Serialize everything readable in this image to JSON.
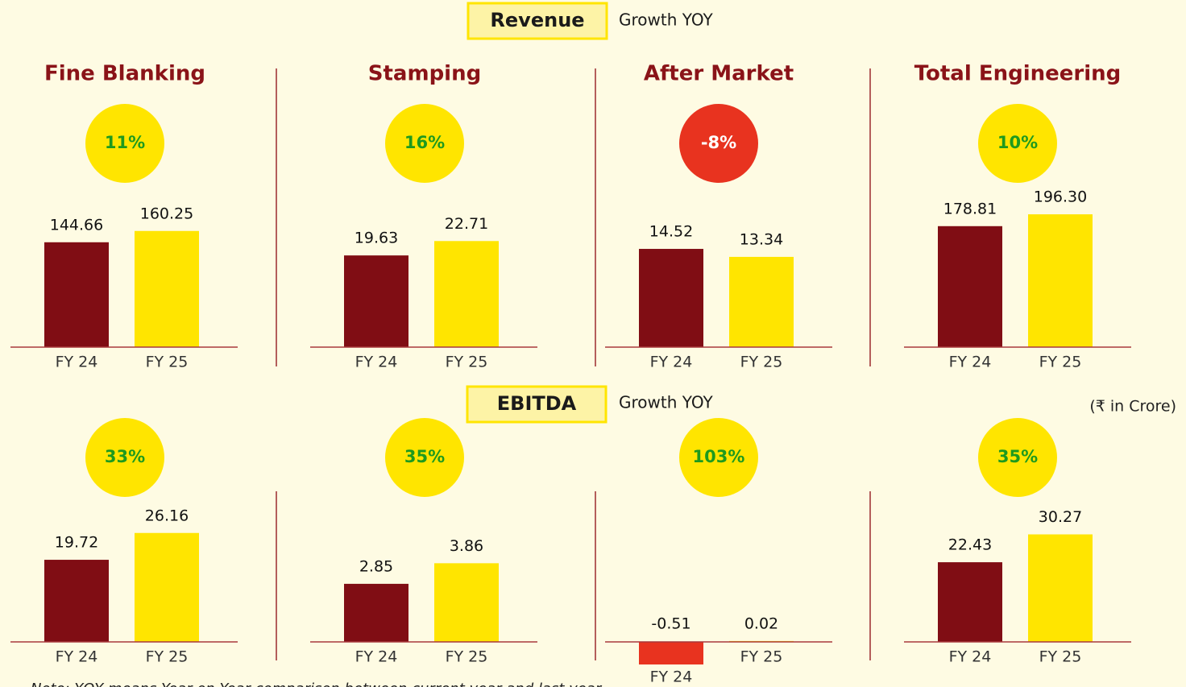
{
  "sections": [
    {
      "title": "Revenue",
      "growth_label": "Growth YOY"
    },
    {
      "title": "EBITDA",
      "growth_label": "Growth YOY"
    }
  ],
  "unit_note": "(₹ in Crore)",
  "note": "Note: YOY means Year on Year comparison between current year and last year",
  "chart_data": [
    {
      "type": "bar",
      "title": "Fine Blanking",
      "categories": [
        "FY 24",
        "FY 25"
      ],
      "values": [
        144.66,
        160.25
      ],
      "colors": [
        "#800d14",
        "#ffe500"
      ],
      "growth": {
        "value": 11,
        "label": "11%"
      }
    },
    {
      "type": "bar",
      "title": "Stamping",
      "categories": [
        "FY 24",
        "FY 25"
      ],
      "values": [
        19.63,
        22.71
      ],
      "colors": [
        "#800d14",
        "#ffe500"
      ],
      "growth": {
        "value": 16,
        "label": "16%"
      }
    },
    {
      "type": "bar",
      "title": "After Market",
      "categories": [
        "FY 24",
        "FY 25"
      ],
      "values": [
        14.52,
        13.34
      ],
      "colors": [
        "#800d14",
        "#ffe500"
      ],
      "growth": {
        "value": -8,
        "label": "-8%"
      }
    },
    {
      "type": "bar",
      "title": "Total Engineering",
      "categories": [
        "FY 24",
        "FY 25"
      ],
      "values": [
        178.81,
        196.3
      ],
      "value_labels": [
        "178.81",
        "196.30"
      ],
      "colors": [
        "#800d14",
        "#ffe500"
      ],
      "growth": {
        "value": 10,
        "label": "10%"
      }
    },
    {
      "type": "bar",
      "categories": [
        "FY 24",
        "FY 25"
      ],
      "values": [
        19.72,
        26.16
      ],
      "colors": [
        "#800d14",
        "#ffe500"
      ],
      "growth": {
        "value": 33,
        "label": "33%"
      }
    },
    {
      "type": "bar",
      "categories": [
        "FY 24",
        "FY 25"
      ],
      "values": [
        2.85,
        3.86
      ],
      "colors": [
        "#800d14",
        "#ffe500"
      ],
      "growth": {
        "value": 35,
        "label": "35%"
      }
    },
    {
      "type": "bar",
      "categories": [
        "FY 24",
        "FY 25"
      ],
      "values": [
        -0.51,
        0.02
      ],
      "colors": [
        "#800d14",
        "#ffe500"
      ],
      "negative_color": "#e8331f",
      "growth": {
        "value": 103,
        "label": "103%"
      }
    },
    {
      "type": "bar",
      "categories": [
        "FY 24",
        "FY 25"
      ],
      "values": [
        22.43,
        30.27
      ],
      "colors": [
        "#800d14",
        "#ffe500"
      ],
      "growth": {
        "value": 35,
        "label": "35%"
      }
    }
  ]
}
